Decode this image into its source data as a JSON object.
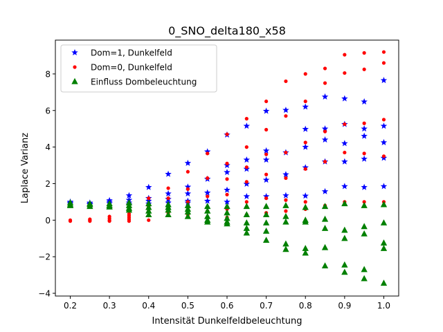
{
  "chart_data": {
    "type": "scatter",
    "title": "0_SNO_delta180_x58",
    "xlabel": "Intensität Dunkelfeldbeleuchtung",
    "ylabel": "Laplace Varianz",
    "xlim": [
      0.162,
      1.038
    ],
    "ylim": [
      -4.15,
      9.85
    ],
    "xticks": [
      0.2,
      0.3,
      0.4,
      0.5,
      0.6,
      0.7,
      0.8,
      0.9,
      1.0
    ],
    "xtick_labels": [
      "0.2",
      "0.3",
      "0.4",
      "0.5",
      "0.6",
      "0.7",
      "0.8",
      "0.9",
      "1.0"
    ],
    "yticks": [
      -4,
      -2,
      0,
      2,
      4,
      6,
      8
    ],
    "ytick_labels": [
      "−4",
      "−2",
      "0",
      "2",
      "4",
      "6",
      "8"
    ],
    "grid": false,
    "legend_position": "top-left",
    "series": [
      {
        "name": "Dom=1, Dunkelfeld",
        "marker": "star",
        "color": "#0000ff",
        "points": [
          [
            0.2,
            1.0
          ],
          [
            0.2,
            0.95
          ],
          [
            0.2,
            0.9
          ],
          [
            0.25,
            0.95
          ],
          [
            0.25,
            0.9
          ],
          [
            0.25,
            0.85
          ],
          [
            0.3,
            1.08
          ],
          [
            0.3,
            1.0
          ],
          [
            0.3,
            0.92
          ],
          [
            0.35,
            1.35
          ],
          [
            0.35,
            1.1
          ],
          [
            0.35,
            0.95
          ],
          [
            0.35,
            0.85
          ],
          [
            0.4,
            1.8
          ],
          [
            0.4,
            1.2
          ],
          [
            0.4,
            1.05
          ],
          [
            0.4,
            0.9
          ],
          [
            0.45,
            2.52
          ],
          [
            0.45,
            1.45
          ],
          [
            0.45,
            1.15
          ],
          [
            0.45,
            0.95
          ],
          [
            0.5,
            3.12
          ],
          [
            0.5,
            1.82
          ],
          [
            0.5,
            1.45
          ],
          [
            0.5,
            1.05
          ],
          [
            0.5,
            0.95
          ],
          [
            0.55,
            3.75
          ],
          [
            0.55,
            2.25
          ],
          [
            0.55,
            1.5
          ],
          [
            0.55,
            1.05
          ],
          [
            0.6,
            4.67
          ],
          [
            0.6,
            3.0
          ],
          [
            0.6,
            2.62
          ],
          [
            0.6,
            1.65
          ],
          [
            0.6,
            1.0
          ],
          [
            0.65,
            5.15
          ],
          [
            0.65,
            3.3
          ],
          [
            0.65,
            2.8
          ],
          [
            0.65,
            1.98
          ],
          [
            0.65,
            1.3
          ],
          [
            0.7,
            5.97
          ],
          [
            0.7,
            3.8
          ],
          [
            0.7,
            3.3
          ],
          [
            0.7,
            2.2
          ],
          [
            0.7,
            1.3
          ],
          [
            0.75,
            6.02
          ],
          [
            0.75,
            3.7
          ],
          [
            0.75,
            2.5
          ],
          [
            0.75,
            1.35
          ],
          [
            0.8,
            6.2
          ],
          [
            0.8,
            4.98
          ],
          [
            0.8,
            4.0
          ],
          [
            0.8,
            2.88
          ],
          [
            0.8,
            1.33
          ],
          [
            0.85,
            6.75
          ],
          [
            0.85,
            5.0
          ],
          [
            0.85,
            4.4
          ],
          [
            0.85,
            3.2
          ],
          [
            0.85,
            1.57
          ],
          [
            0.9,
            6.65
          ],
          [
            0.9,
            5.25
          ],
          [
            0.9,
            4.2
          ],
          [
            0.9,
            3.2
          ],
          [
            0.9,
            1.85
          ],
          [
            0.95,
            6.48
          ],
          [
            0.95,
            5.0
          ],
          [
            0.95,
            4.6
          ],
          [
            0.95,
            3.35
          ],
          [
            0.95,
            1.8
          ],
          [
            1.0,
            7.65
          ],
          [
            1.0,
            5.15
          ],
          [
            1.0,
            4.25
          ],
          [
            1.0,
            3.4
          ],
          [
            1.0,
            1.85
          ]
        ]
      },
      {
        "name": "Dom=0, Dunkelfeld",
        "marker": "dot",
        "color": "#ff0000",
        "points": [
          [
            0.2,
            0.0
          ],
          [
            0.2,
            -0.05
          ],
          [
            0.25,
            0.05
          ],
          [
            0.25,
            0.0
          ],
          [
            0.25,
            -0.05
          ],
          [
            0.3,
            0.2
          ],
          [
            0.3,
            0.1
          ],
          [
            0.3,
            0.0
          ],
          [
            0.3,
            -0.05
          ],
          [
            0.35,
            0.35
          ],
          [
            0.35,
            0.25
          ],
          [
            0.35,
            0.15
          ],
          [
            0.35,
            0.05
          ],
          [
            0.35,
            -0.05
          ],
          [
            0.4,
            1.2
          ],
          [
            0.4,
            0.75
          ],
          [
            0.4,
            0.5
          ],
          [
            0.4,
            0.25
          ],
          [
            0.4,
            0.0
          ],
          [
            0.45,
            1.75
          ],
          [
            0.45,
            1.2
          ],
          [
            0.45,
            0.8
          ],
          [
            0.45,
            0.4
          ],
          [
            0.5,
            2.65
          ],
          [
            0.5,
            1.7
          ],
          [
            0.5,
            1.0
          ],
          [
            0.5,
            0.6
          ],
          [
            0.5,
            0.3
          ],
          [
            0.55,
            3.65
          ],
          [
            0.55,
            2.3
          ],
          [
            0.55,
            1.3
          ],
          [
            0.55,
            0.5
          ],
          [
            0.55,
            0.15
          ],
          [
            0.6,
            4.7
          ],
          [
            0.6,
            3.1
          ],
          [
            0.6,
            2.25
          ],
          [
            0.6,
            1.4
          ],
          [
            0.6,
            0.6
          ],
          [
            0.6,
            0.15
          ],
          [
            0.65,
            5.55
          ],
          [
            0.65,
            4.0
          ],
          [
            0.65,
            2.9
          ],
          [
            0.65,
            2.1
          ],
          [
            0.65,
            1.0
          ],
          [
            0.65,
            0.3
          ],
          [
            0.7,
            6.5
          ],
          [
            0.7,
            4.95
          ],
          [
            0.7,
            3.6
          ],
          [
            0.7,
            2.5
          ],
          [
            0.7,
            1.2
          ],
          [
            0.7,
            0.4
          ],
          [
            0.75,
            7.6
          ],
          [
            0.75,
            5.7
          ],
          [
            0.75,
            3.7
          ],
          [
            0.75,
            2.3
          ],
          [
            0.75,
            1.1
          ],
          [
            0.75,
            0.5
          ],
          [
            0.8,
            8.0
          ],
          [
            0.8,
            6.5
          ],
          [
            0.8,
            4.25
          ],
          [
            0.8,
            2.8
          ],
          [
            0.8,
            1.0
          ],
          [
            0.8,
            0.6
          ],
          [
            0.85,
            8.3
          ],
          [
            0.85,
            7.5
          ],
          [
            0.85,
            4.85
          ],
          [
            0.85,
            3.2
          ],
          [
            0.85,
            0.8
          ],
          [
            0.9,
            9.05
          ],
          [
            0.9,
            8.05
          ],
          [
            0.9,
            5.25
          ],
          [
            0.9,
            3.7
          ],
          [
            0.9,
            1.0
          ],
          [
            0.95,
            9.15
          ],
          [
            0.95,
            8.25
          ],
          [
            0.95,
            5.3
          ],
          [
            0.95,
            3.65
          ],
          [
            0.95,
            1.0
          ],
          [
            1.0,
            9.2
          ],
          [
            1.0,
            8.6
          ],
          [
            1.0,
            5.5
          ],
          [
            1.0,
            3.5
          ],
          [
            1.0,
            1.0
          ]
        ]
      },
      {
        "name": "Einfluss Dombeleuchtung",
        "marker": "triangle",
        "color": "#008000",
        "points": [
          [
            0.2,
            0.95
          ],
          [
            0.2,
            0.85
          ],
          [
            0.2,
            0.8
          ],
          [
            0.25,
            0.9
          ],
          [
            0.25,
            0.85
          ],
          [
            0.25,
            0.75
          ],
          [
            0.3,
            0.9
          ],
          [
            0.3,
            0.8
          ],
          [
            0.3,
            0.72
          ],
          [
            0.35,
            0.95
          ],
          [
            0.35,
            0.8
          ],
          [
            0.35,
            0.65
          ],
          [
            0.35,
            0.55
          ],
          [
            0.4,
            0.9
          ],
          [
            0.4,
            0.7
          ],
          [
            0.4,
            0.5
          ],
          [
            0.4,
            0.3
          ],
          [
            0.45,
            0.85
          ],
          [
            0.45,
            0.7
          ],
          [
            0.45,
            0.55
          ],
          [
            0.45,
            0.3
          ],
          [
            0.5,
            0.8
          ],
          [
            0.5,
            0.6
          ],
          [
            0.5,
            0.45
          ],
          [
            0.5,
            0.2
          ],
          [
            0.55,
            0.75
          ],
          [
            0.55,
            0.5
          ],
          [
            0.55,
            0.2
          ],
          [
            0.55,
            0.0
          ],
          [
            0.55,
            -0.1
          ],
          [
            0.6,
            0.75
          ],
          [
            0.6,
            0.4
          ],
          [
            0.6,
            0.1
          ],
          [
            0.6,
            -0.1
          ],
          [
            0.6,
            -0.2
          ],
          [
            0.65,
            0.75
          ],
          [
            0.65,
            0.3
          ],
          [
            0.65,
            -0.15
          ],
          [
            0.65,
            -0.45
          ],
          [
            0.65,
            -0.7
          ],
          [
            0.7,
            0.75
          ],
          [
            0.7,
            0.3
          ],
          [
            0.7,
            -0.15
          ],
          [
            0.7,
            -0.6
          ],
          [
            0.7,
            -1.1
          ],
          [
            0.75,
            0.8
          ],
          [
            0.75,
            0.2
          ],
          [
            0.75,
            -0.1
          ],
          [
            0.75,
            -1.3
          ],
          [
            0.75,
            -1.6
          ],
          [
            0.8,
            0.7
          ],
          [
            0.8,
            0.0
          ],
          [
            0.8,
            -0.1
          ],
          [
            0.8,
            -1.55
          ],
          [
            0.8,
            -1.8
          ],
          [
            0.85,
            0.75
          ],
          [
            0.85,
            0.05
          ],
          [
            0.85,
            -0.45
          ],
          [
            0.85,
            -1.5
          ],
          [
            0.85,
            -2.5
          ],
          [
            0.9,
            0.9
          ],
          [
            0.9,
            -0.55
          ],
          [
            0.9,
            -1.0
          ],
          [
            0.9,
            -2.45
          ],
          [
            0.9,
            -2.85
          ],
          [
            0.95,
            0.8
          ],
          [
            0.95,
            -0.35
          ],
          [
            0.95,
            -0.75
          ],
          [
            0.95,
            -2.7
          ],
          [
            0.95,
            -3.2
          ],
          [
            1.0,
            0.85
          ],
          [
            1.0,
            -0.15
          ],
          [
            1.0,
            -1.25
          ],
          [
            1.0,
            -1.55
          ],
          [
            1.0,
            -3.45
          ]
        ]
      }
    ]
  }
}
